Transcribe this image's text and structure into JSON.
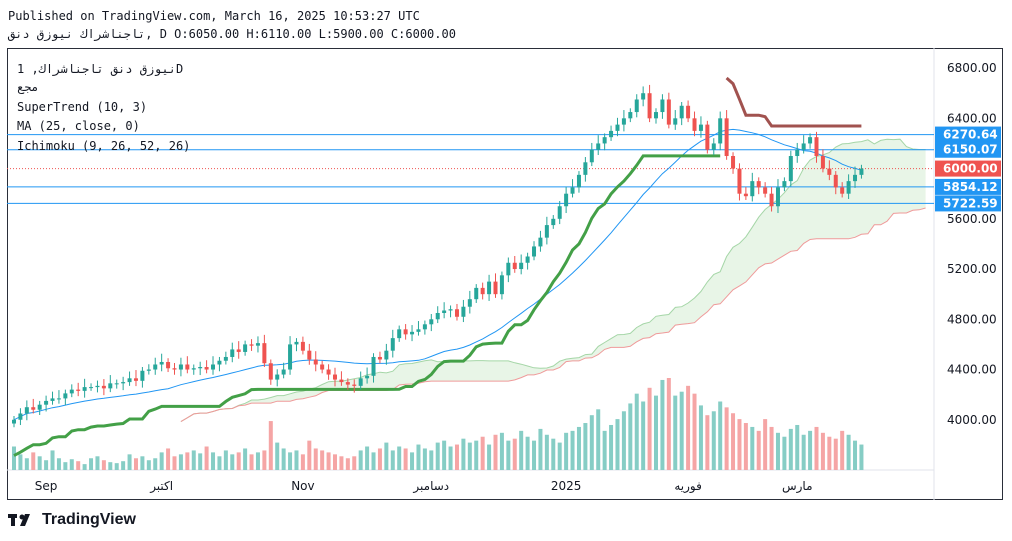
{
  "header": {
    "published": "Published on TradingView.com, March 16, 2025 10:53:27 UTC",
    "ohlc_line": "تاجناشراك نيوزق دنق, D O:6050.00 H:6110.00 L:5900.00 C:6000.00"
  },
  "legend": {
    "symbol": "نيوزق دنق تاجناشراك, 1D",
    "exchange": "مجع",
    "supertrend": "SuperTrend (10, 3)",
    "ma": "MA (25, close, 0)",
    "ichimoku": "Ichimoku (9, 26, 52, 26)"
  },
  "footer": {
    "brand": "TradingView"
  },
  "colors": {
    "up": "#26a69a",
    "down": "#ef5350",
    "vol_up": "#86cdc5",
    "vol_down": "#f5a5a5",
    "ma": "#2196f3",
    "st_up": "#43a047",
    "st_down": "#a1524f",
    "cloud_fill": "#e6f4e4",
    "span_a": "#a5d6a7",
    "span_b": "#ef9a9a",
    "hline": "#2196f3"
  },
  "chart_data": {
    "type": "candlestick",
    "y_ticks": [
      "6800.00",
      "6400.00",
      "5600.00",
      "5200.00",
      "4800.00",
      "4400.00",
      "4000.00"
    ],
    "ylim": [
      3600,
      6960
    ],
    "x_labels": [
      {
        "label": "Sep",
        "index": 5
      },
      {
        "label": "اكتبر",
        "index": 23
      },
      {
        "label": "Nov",
        "index": 45
      },
      {
        "label": "دسامبر",
        "index": 65
      },
      {
        "label": "2025",
        "index": 86
      },
      {
        "label": "فوريه",
        "index": 105
      },
      {
        "label": "مارس",
        "index": 122
      }
    ],
    "price_lines": [
      {
        "value": 6270.64,
        "label": "6270.64",
        "color": "#2196f3"
      },
      {
        "value": 6150.07,
        "label": "6150.07",
        "color": "#2196f3"
      },
      {
        "value": 6000.0,
        "label": "6000.00",
        "color": "#ef5350"
      },
      {
        "value": 5854.12,
        "label": "5854.12",
        "color": "#2196f3"
      },
      {
        "value": 5722.59,
        "label": "5722.59",
        "color": "#2196f3"
      }
    ],
    "closes": [
      4000,
      4050,
      4100,
      4080,
      4120,
      4150,
      4170,
      4170,
      4210,
      4240,
      4230,
      4260,
      4260,
      4270,
      4250,
      4290,
      4290,
      4300,
      4330,
      4310,
      4390,
      4400,
      4440,
      4460,
      4410,
      4400,
      4440,
      4400,
      4410,
      4420,
      4400,
      4440,
      4470,
      4500,
      4560,
      4540,
      4600,
      4590,
      4610,
      4450,
      4320,
      4360,
      4400,
      4600,
      4620,
      4550,
      4480,
      4440,
      4400,
      4360,
      4320,
      4300,
      4280,
      4270,
      4330,
      4350,
      4500,
      4480,
      4550,
      4650,
      4720,
      4680,
      4700,
      4720,
      4760,
      4800,
      4850,
      4870,
      4880,
      4820,
      4900,
      4960,
      5050,
      5000,
      5100,
      5000,
      5150,
      5250,
      5200,
      5250,
      5300,
      5380,
      5450,
      5550,
      5600,
      5700,
      5800,
      5850,
      5950,
      6050,
      6150,
      6200,
      6250,
      6300,
      6350,
      6400,
      6450,
      6550,
      6600,
      6400,
      6450,
      6550,
      6350,
      6400,
      6500,
      6400,
      6300,
      6350,
      6150,
      6200,
      6400,
      6100,
      6000,
      5800,
      5780,
      5900,
      5850,
      5800,
      5700,
      5850,
      5900,
      6100,
      6150,
      6200,
      6250,
      6100,
      6000,
      5950,
      5850,
      5800,
      5900,
      5950,
      6000
    ],
    "volumes": [
      120,
      80,
      60,
      90,
      70,
      50,
      100,
      60,
      40,
      55,
      45,
      30,
      60,
      70,
      50,
      40,
      35,
      45,
      80,
      60,
      70,
      50,
      60,
      90,
      110,
      70,
      80,
      90,
      100,
      85,
      120,
      90,
      70,
      100,
      80,
      90,
      110,
      80,
      90,
      100,
      250,
      140,
      110,
      90,
      100,
      80,
      150,
      110,
      100,
      90,
      80,
      70,
      60,
      70,
      100,
      120,
      90,
      110,
      140,
      100,
      120,
      110,
      90,
      130,
      110,
      100,
      140,
      150,
      120,
      130,
      160,
      140,
      150,
      170,
      130,
      180,
      190,
      150,
      160,
      200,
      170,
      150,
      210,
      180,
      160,
      140,
      190,
      200,
      220,
      240,
      280,
      310,
      200,
      230,
      260,
      300,
      340,
      390,
      350,
      420,
      380,
      460,
      470,
      380,
      400,
      430,
      390,
      330,
      280,
      300,
      350,
      320,
      290,
      260,
      240,
      220,
      200,
      260,
      220,
      190,
      170,
      210,
      230,
      180,
      200,
      220,
      190,
      170,
      160,
      200,
      180,
      150,
      130
    ]
  }
}
